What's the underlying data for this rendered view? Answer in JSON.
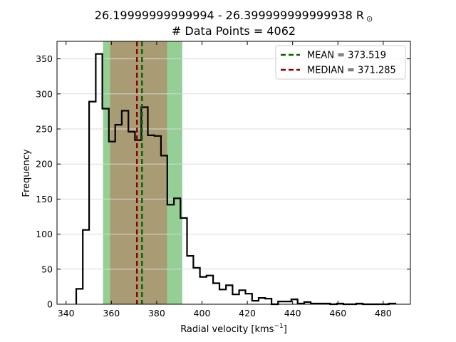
{
  "chart_data": {
    "type": "histogram",
    "title_line1": "26.19999999999994 - 26.399999999999938 R",
    "title_symbol": "⊙",
    "title_line2": "# Data Points = 4062",
    "xlabel_prefix": "Radial velocity [kms",
    "xlabel_exp": "−1",
    "xlabel_suffix": "]",
    "ylabel": "Frequency",
    "xlim": [
      336,
      492
    ],
    "ylim": [
      0,
      375
    ],
    "xticks": [
      340,
      360,
      380,
      400,
      420,
      440,
      460,
      480
    ],
    "yticks": [
      0,
      50,
      100,
      150,
      200,
      250,
      300,
      350
    ],
    "grid": "horizontal",
    "legend_position": "top-right",
    "bin_edges": [
      344.5,
      347.4,
      350.2,
      353.1,
      356.0,
      358.9,
      361.7,
      364.6,
      367.5,
      370.4,
      373.2,
      376.1,
      379.0,
      381.9,
      384.7,
      387.6,
      390.5,
      393.4,
      396.2,
      399.1,
      402.0,
      404.9,
      407.7,
      410.6,
      413.5,
      416.4,
      419.2,
      422.1,
      425.0,
      427.9,
      430.7,
      433.6,
      436.5,
      439.4,
      442.2,
      445.1,
      448.0,
      450.9,
      453.7,
      456.6,
      459.5,
      462.4,
      465.2,
      468.1,
      471.0,
      473.9,
      476.7,
      479.6,
      482.5,
      485.4
    ],
    "counts": [
      22,
      106,
      289,
      357,
      279,
      232,
      256,
      276,
      246,
      234,
      281,
      241,
      240,
      212,
      142,
      151,
      123,
      69,
      52,
      39,
      41,
      30,
      21,
      27,
      14,
      20,
      15,
      5,
      9,
      8,
      0,
      4,
      4,
      7,
      1,
      3,
      1,
      1,
      1,
      0,
      1,
      0,
      0,
      1,
      0,
      0,
      0,
      0,
      1
    ],
    "mean": 373.519,
    "median": 371.285,
    "spans": [
      {
        "from": 356.3,
        "to": 391.3,
        "color": "#2ca02c",
        "alpha": 0.5
      },
      {
        "from": 359.4,
        "to": 384.6,
        "color": "#d62728",
        "alpha": 0.3
      }
    ],
    "legend": [
      {
        "label": "MEAN = 373.519",
        "color": "#006400"
      },
      {
        "label": "MEDIAN = 371.285",
        "color": "#8b0000"
      }
    ],
    "colors": {
      "mean": "#006400",
      "median": "#8b0000",
      "hist": "#000000",
      "grid": "#d9d9d9"
    }
  }
}
